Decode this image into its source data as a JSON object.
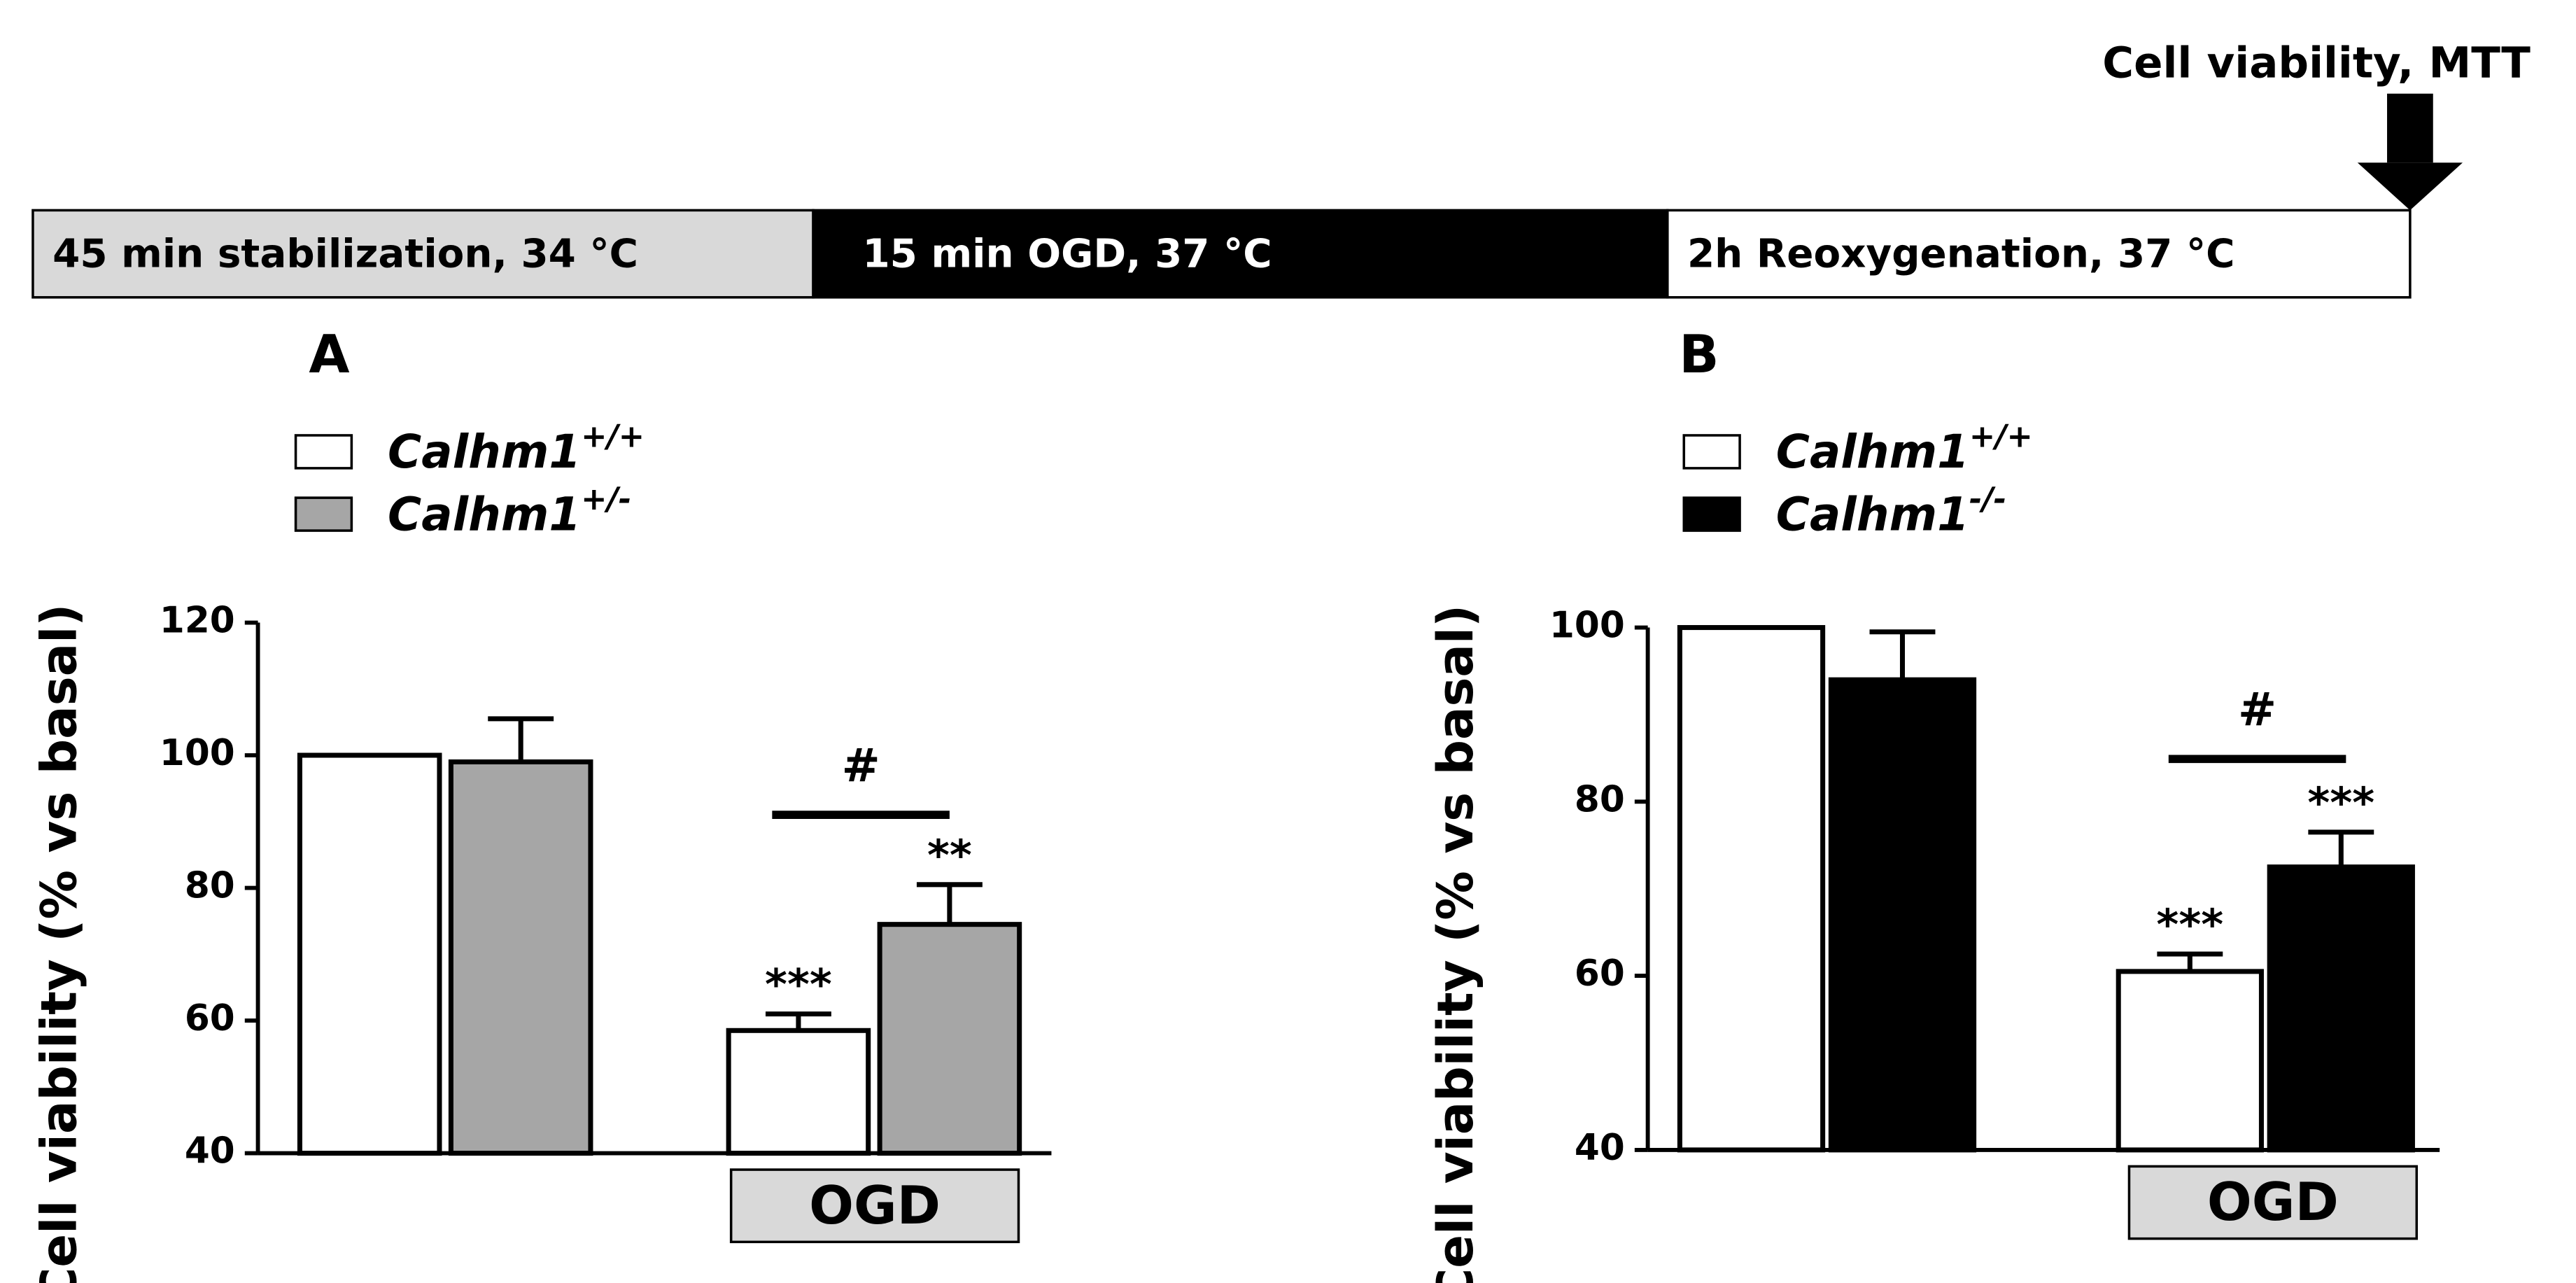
{
  "timeline": {
    "segments": [
      {
        "label": "45 min stabilization, 34 °C",
        "color": "#d9d9d9",
        "text_color": "#000000"
      },
      {
        "label": "15 min  OGD, 37 °C",
        "color": "#000000",
        "text_color": "#ffffff"
      },
      {
        "label": "2h Reoxygenation, 37 °C",
        "color": "#ffffff",
        "text_color": "#000000"
      }
    ],
    "endpoint": "Cell viability, MTT"
  },
  "chart_data": [
    {
      "type": "bar",
      "panel": "A",
      "y_label": "Cell viability (% vs basal)",
      "categories": [
        null,
        "OGD"
      ],
      "series": [
        {
          "name": "Calhm1",
          "genotype": "+/+",
          "color": "#ffffff",
          "values": [
            100,
            58.5
          ],
          "errors": [
            null,
            2.5
          ],
          "annotations": [
            null,
            "***"
          ]
        },
        {
          "name": "Calhm1",
          "genotype": "+/-",
          "color": "#a6a6a6",
          "values": [
            99,
            74.5
          ],
          "errors": [
            6.5,
            6
          ],
          "annotations": [
            null,
            "**"
          ]
        }
      ],
      "group_annotations": [
        null,
        "#"
      ],
      "ylim": [
        40,
        120
      ],
      "yticks": [
        40,
        60,
        80,
        100,
        120
      ]
    },
    {
      "type": "bar",
      "panel": "B",
      "y_label": "Cell viability (% vs basal)",
      "categories": [
        null,
        "OGD"
      ],
      "series": [
        {
          "name": "Calhm1",
          "genotype": "+/+",
          "color": "#ffffff",
          "values": [
            100,
            60.5
          ],
          "errors": [
            null,
            2
          ],
          "annotations": [
            null,
            "***"
          ]
        },
        {
          "name": "Calhm1",
          "genotype": "-/-",
          "color": "#000000",
          "values": [
            94,
            72.5
          ],
          "errors": [
            5.5,
            4
          ],
          "annotations": [
            null,
            "***"
          ]
        }
      ],
      "group_annotations": [
        null,
        "#"
      ],
      "ylim": [
        40,
        100
      ],
      "yticks": [
        40,
        60,
        80,
        100
      ]
    }
  ]
}
